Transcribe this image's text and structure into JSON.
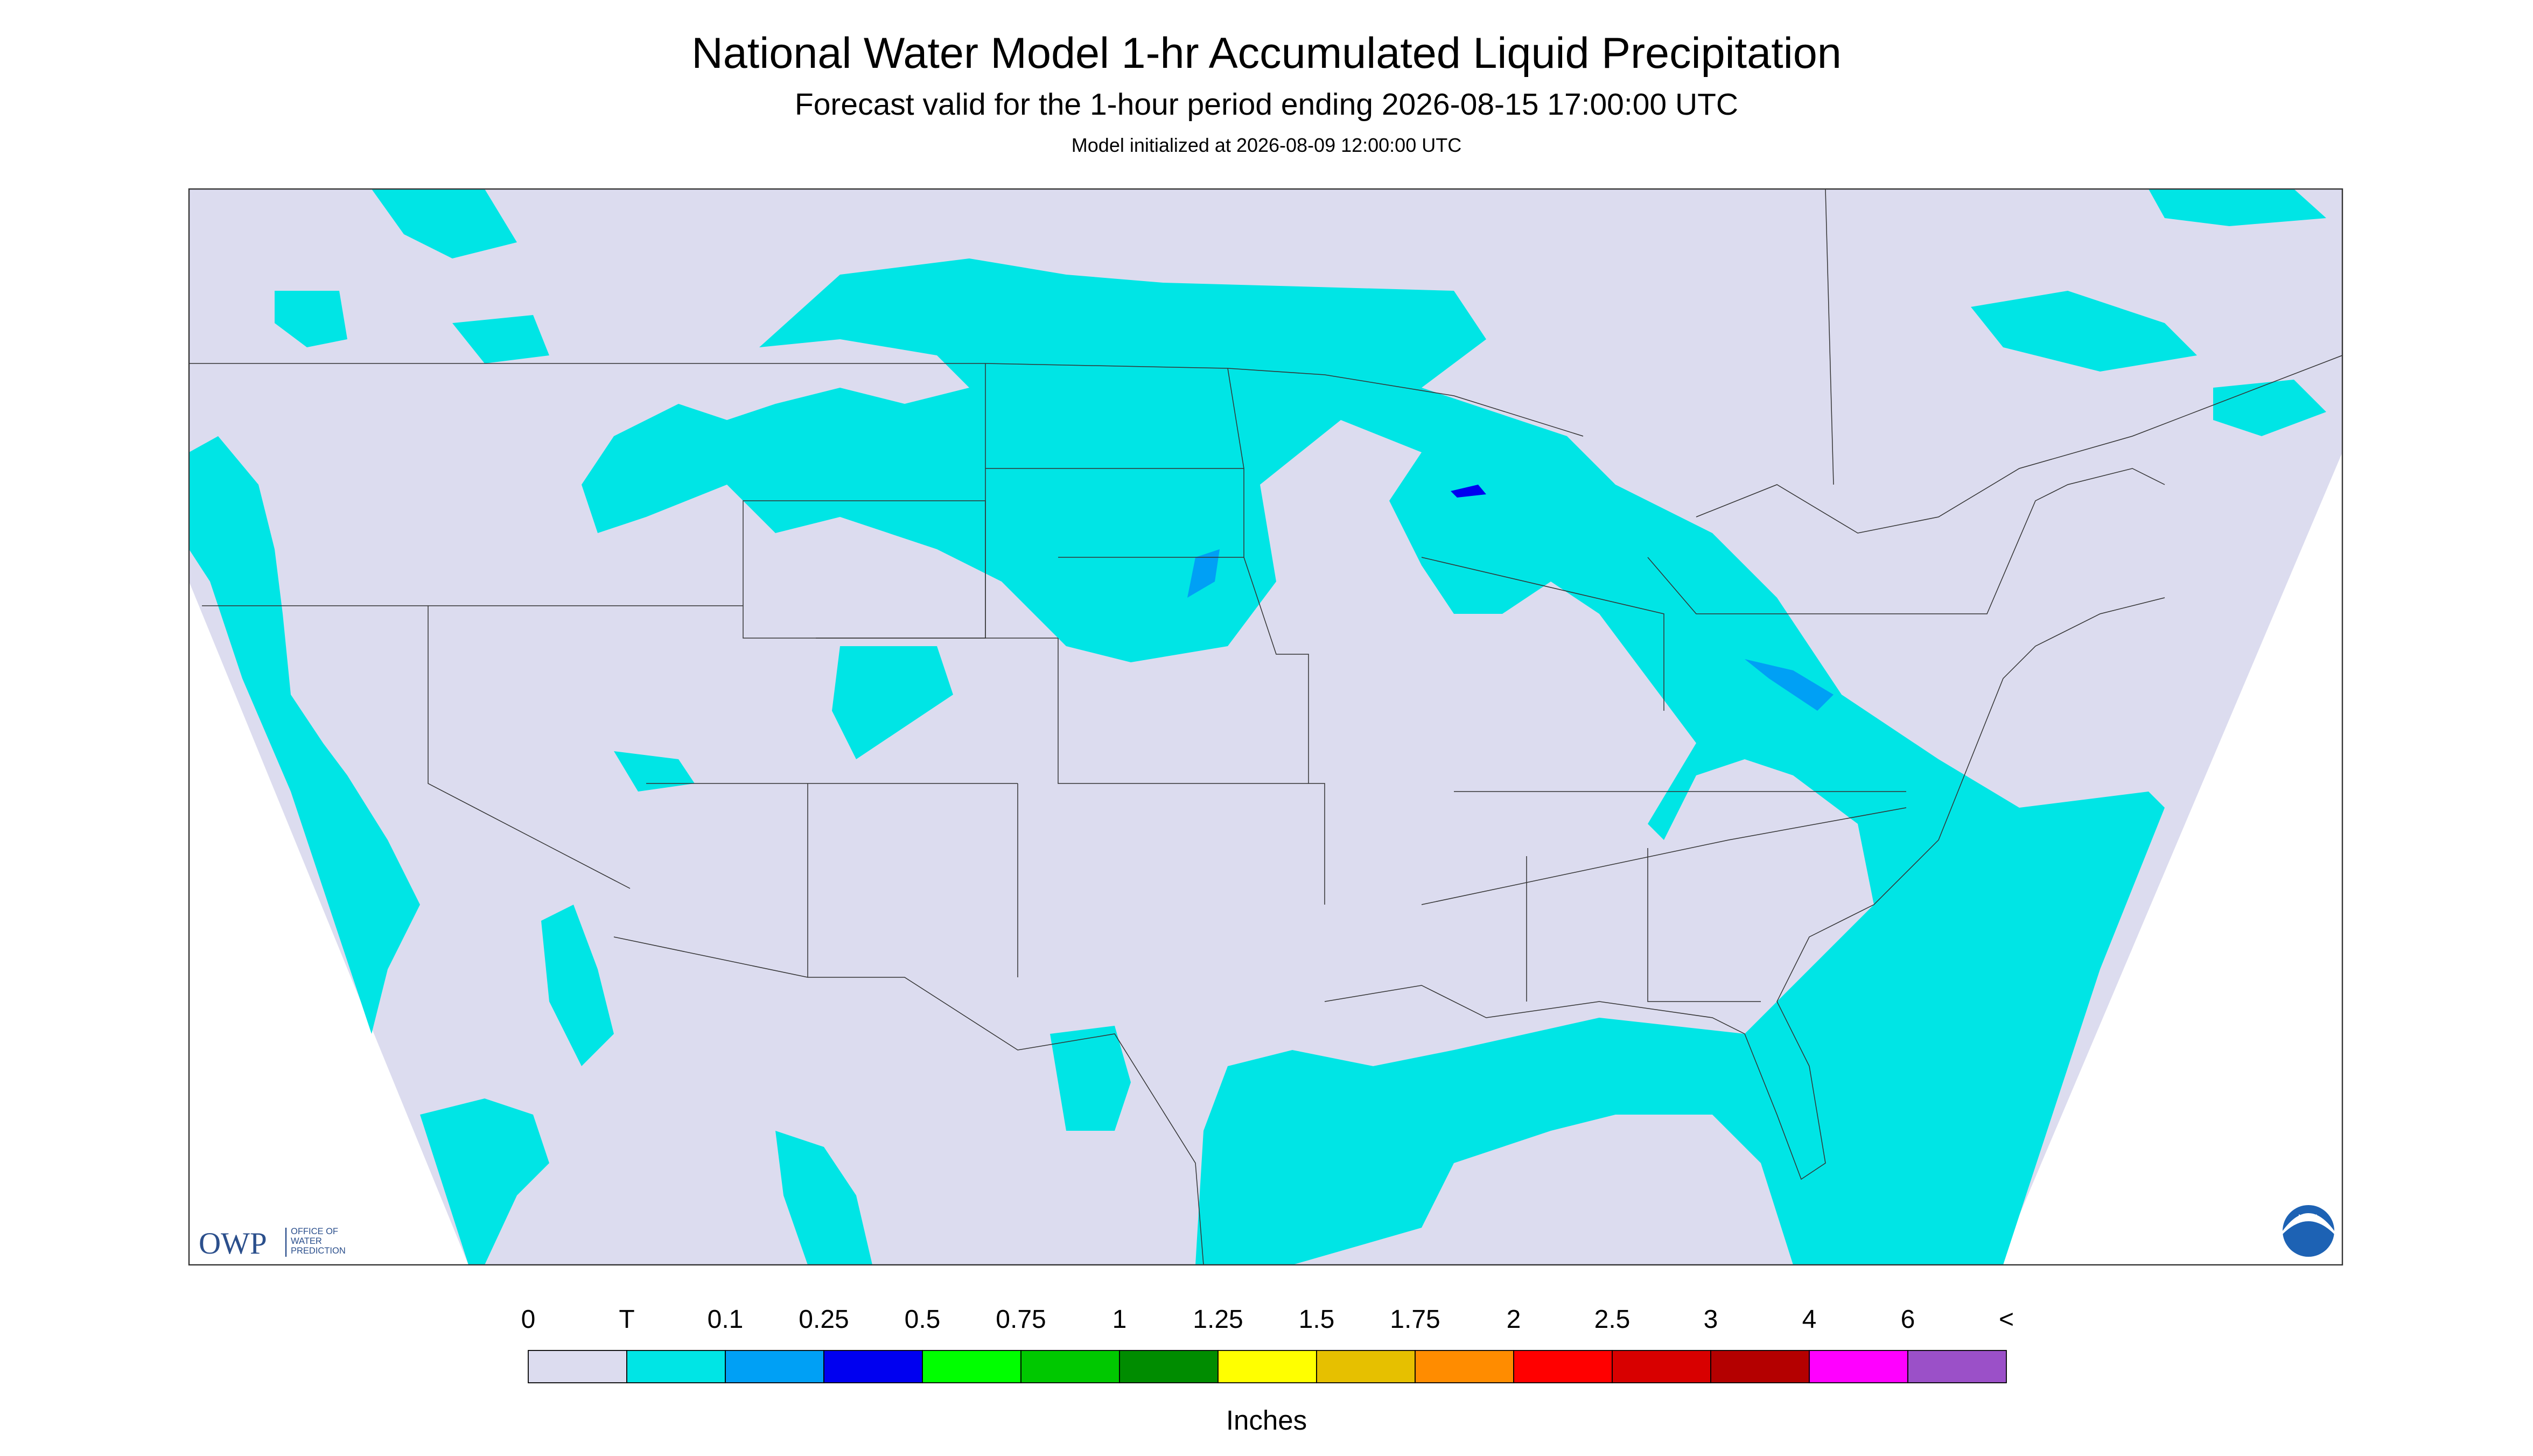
{
  "header": {
    "title": "National Water Model 1-hr Accumulated Liquid Precipitation",
    "subtitle": "Forecast valid for the 1-hour period ending 2026-08-15 17:00:00 UTC",
    "initialized": "Model initialized at 2026-08-09 12:00:00 UTC"
  },
  "legend": {
    "labels": [
      "0",
      "T",
      "0.1",
      "0.25",
      "0.5",
      "0.75",
      "1",
      "1.25",
      "1.5",
      "1.75",
      "2",
      "2.5",
      "3",
      "4",
      "6",
      "<"
    ],
    "colors": [
      "#dcdcef",
      "#00e5e5",
      "#00a0f5",
      "#0000f0",
      "#00ff00",
      "#00c800",
      "#008c00",
      "#ffff00",
      "#e6c000",
      "#ff8c00",
      "#ff0000",
      "#d80000",
      "#b40000",
      "#ff00ff",
      "#9b50c8"
    ],
    "unit": "Inches"
  },
  "logos": {
    "owp": "OWP",
    "owp_name": [
      "OFFICE OF",
      "WATER",
      "PREDICTION"
    ],
    "noaa": "NOAA"
  }
}
